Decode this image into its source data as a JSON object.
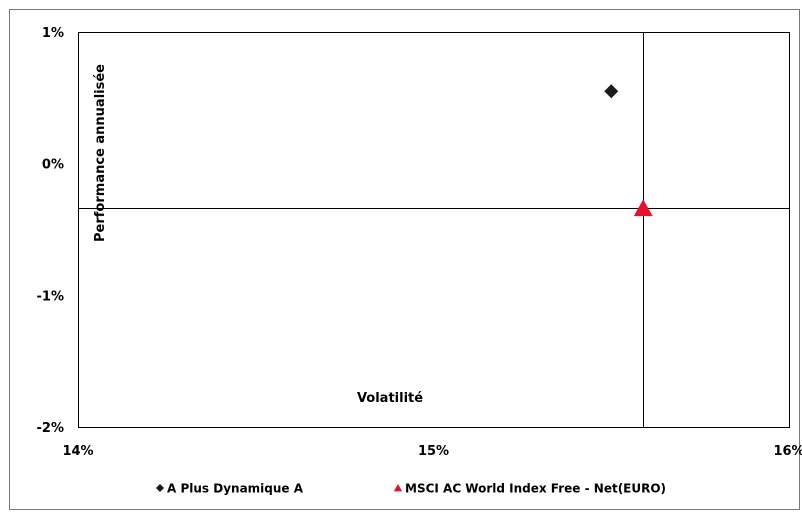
{
  "chart_data": {
    "type": "scatter",
    "title": "",
    "xlabel": "Volatilité",
    "ylabel": "Performance annualisée",
    "xlim": [
      14,
      16
    ],
    "ylim": [
      -2,
      1
    ],
    "x_ticks": [
      14,
      15,
      16
    ],
    "x_tick_labels": [
      "14%",
      "15%",
      "16%"
    ],
    "y_ticks": [
      -2,
      -1,
      0,
      1
    ],
    "y_tick_labels": [
      "-2%",
      "-1%",
      "0%",
      "1%"
    ],
    "grid": false,
    "reference_lines": {
      "x": 15.59,
      "y": -0.34
    },
    "legend_position": "bottom",
    "series": [
      {
        "name": "A Plus Dynamique A",
        "marker": "diamond",
        "color": "#1a1a1a",
        "points": [
          {
            "x": 15.5,
            "y": 0.55
          }
        ]
      },
      {
        "name": "MSCI AC World Index Free - Net(EURO)",
        "marker": "triangle",
        "color": "#e8102a",
        "points": [
          {
            "x": 15.59,
            "y": -0.34
          }
        ]
      }
    ]
  }
}
